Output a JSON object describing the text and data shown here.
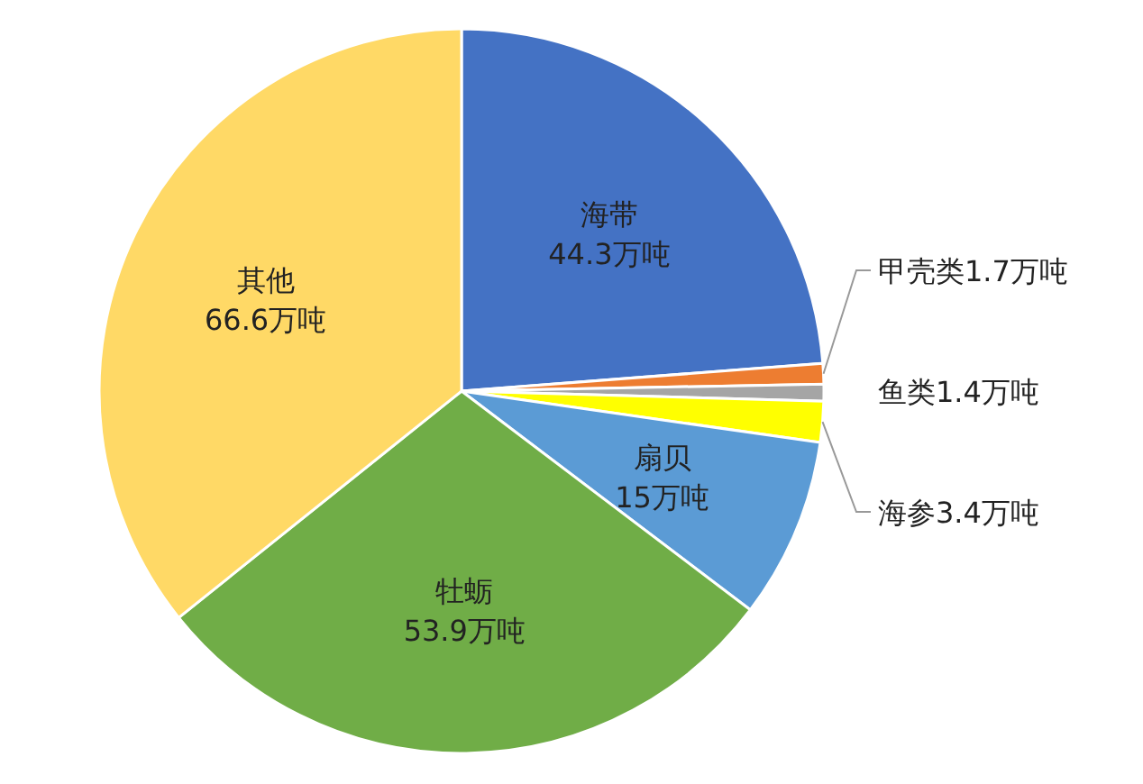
{
  "chart_data": {
    "type": "pie",
    "categories": [
      "海带",
      "甲壳类",
      "鱼类",
      "海参",
      "扇贝",
      "牡蛎",
      "其他"
    ],
    "values": [
      44.3,
      1.7,
      1.4,
      3.4,
      15,
      53.9,
      66.6
    ],
    "value_labels": [
      "44.3万吨",
      "1.7万吨",
      "1.4万吨",
      "3.4万吨",
      "15万吨",
      "53.9万吨",
      "66.6万吨"
    ],
    "colors": [
      "#4472c4",
      "#ed7d31",
      "#a5a5a5",
      "#ffff00",
      "#5b9bd5",
      "#70ad47",
      "#ffd966"
    ]
  }
}
